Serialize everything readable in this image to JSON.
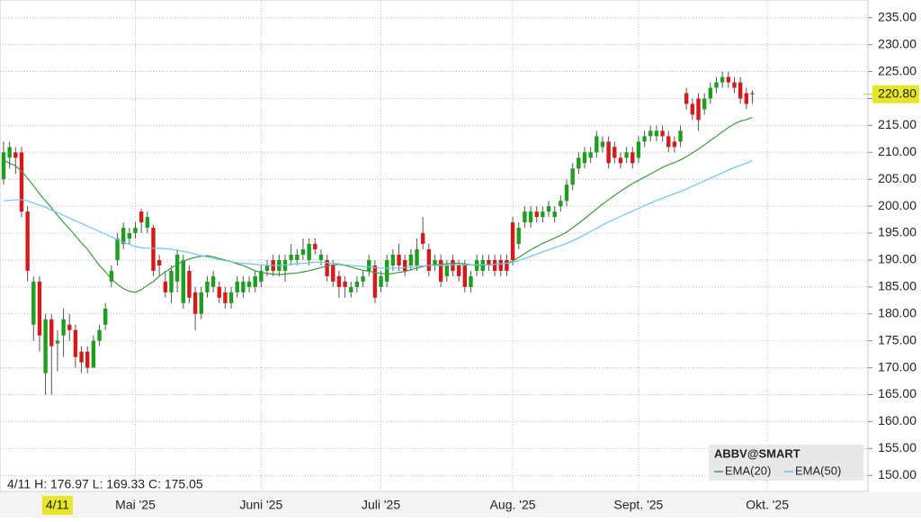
{
  "chart_data": {
    "type": "candlestick",
    "title": "ABBV@SMART",
    "info": "4/11 H: 176.97 L: 169.33 C: 175.05",
    "crosshair": {
      "x": 9,
      "label": "4/11"
    },
    "last_price": {
      "value": 220.8,
      "label": "220.80"
    },
    "up_color": "#1e9e1e",
    "down_color": "#d41a1a",
    "xlim": [
      -0.6,
      144.3
    ],
    "xticks": [
      {
        "value": 22,
        "label": "Mai '25"
      },
      {
        "value": 43,
        "label": "Juni '25"
      },
      {
        "value": 63,
        "label": "Juli '25"
      },
      {
        "value": 85,
        "label": "Aug. '25"
      },
      {
        "value": 106,
        "label": "Sept. '25"
      },
      {
        "value": 127.5,
        "label": "Okt. '25"
      }
    ],
    "ylim": [
      147.2,
      238.3
    ],
    "yticks": [
      {
        "value": 150,
        "label": "150.00"
      },
      {
        "value": 155,
        "label": "155.00"
      },
      {
        "value": 160,
        "label": "160.00"
      },
      {
        "value": 165,
        "label": "165.00"
      },
      {
        "value": 170,
        "label": "170.00"
      },
      {
        "value": 175,
        "label": "175.00"
      },
      {
        "value": 180,
        "label": "180.00"
      },
      {
        "value": 185,
        "label": "185.00"
      },
      {
        "value": 190,
        "label": "190.00"
      },
      {
        "value": 195,
        "label": "195.00"
      },
      {
        "value": 200,
        "label": "200.00"
      },
      {
        "value": 205,
        "label": "205.00"
      },
      {
        "value": 210,
        "label": "210.00"
      },
      {
        "value": 215,
        "label": "215.00"
      },
      {
        "value": 220,
        "label": "220.00"
      },
      {
        "value": 225,
        "label": "225.00"
      },
      {
        "value": 230,
        "label": "230.00"
      },
      {
        "value": 235,
        "label": "235.00"
      }
    ],
    "grid": true,
    "legend": "bottom-right",
    "candles": {
      "open": [
        205,
        209,
        210,
        210,
        199,
        178,
        186,
        169,
        179,
        174.5,
        176,
        178,
        177,
        173,
        173,
        170,
        175,
        178,
        186,
        190,
        193,
        194,
        195,
        199,
        196,
        196,
        190,
        186,
        184,
        186,
        182,
        188,
        184,
        180,
        184,
        185,
        185,
        184,
        182,
        184,
        184,
        185,
        185,
        186,
        188,
        190,
        188,
        188,
        190,
        190,
        191,
        190,
        193,
        190,
        190,
        189,
        187,
        186,
        184,
        185,
        186,
        188,
        189,
        185,
        186,
        189,
        191,
        190,
        189,
        189,
        195,
        192,
        189,
        190,
        187,
        190,
        189,
        189,
        185,
        188,
        188,
        190,
        190,
        190,
        190,
        197,
        193,
        197,
        197,
        199,
        198,
        199,
        198,
        200,
        201,
        204,
        207,
        208,
        209,
        210,
        211,
        212,
        211,
        209,
        209,
        210,
        209,
        212,
        213,
        213,
        214,
        213,
        212,
        212,
        221,
        219,
        220,
        218,
        220,
        222,
        223,
        224,
        223,
        223,
        221,
        221
      ],
      "high": [
        212,
        212,
        211,
        211,
        200,
        187,
        187,
        180,
        180,
        176.97,
        181,
        180,
        178,
        174,
        174,
        176,
        178,
        182,
        189,
        195,
        197,
        196,
        197,
        199.5,
        199,
        196.5,
        191,
        188,
        189,
        192,
        191,
        189,
        185,
        185,
        187,
        188,
        186,
        185,
        185,
        187,
        187,
        187,
        188,
        189,
        190,
        191,
        191,
        191,
        193,
        192,
        194,
        194,
        194,
        192,
        191,
        190,
        188,
        187,
        186,
        187,
        188,
        191,
        190,
        188,
        191,
        192,
        193,
        191,
        192,
        194,
        198,
        193,
        191,
        191,
        190,
        191,
        190,
        190,
        188,
        191,
        191,
        191,
        191,
        191,
        191,
        198,
        197,
        200,
        200,
        200,
        200,
        201,
        200,
        202,
        205,
        208,
        210,
        211,
        211,
        214,
        213,
        213,
        212,
        210,
        211,
        211,
        213,
        214,
        215,
        215,
        215,
        214,
        213,
        215,
        222,
        220,
        221,
        221,
        223,
        224,
        225,
        225,
        224,
        224,
        222,
        221.5
      ],
      "low": [
        204,
        207,
        206,
        198,
        186,
        175,
        173,
        165,
        165,
        169.33,
        172,
        175,
        170,
        169,
        169,
        170,
        174,
        177,
        185,
        189,
        192,
        193,
        194,
        195,
        195,
        187,
        187,
        183,
        182,
        184,
        181,
        182,
        177,
        179,
        183,
        184,
        182,
        181,
        181,
        183,
        183,
        184,
        184,
        185,
        187,
        187,
        187,
        186,
        189,
        189,
        190,
        189,
        191,
        189,
        186,
        185,
        183,
        183,
        183,
        184,
        185,
        187,
        182,
        184,
        185,
        188,
        188,
        187,
        188,
        188,
        192,
        187,
        188,
        185,
        186,
        187,
        186,
        184,
        184,
        187,
        187,
        188,
        187,
        187,
        187,
        189,
        192,
        196,
        196,
        197,
        197,
        198,
        197,
        199,
        200,
        203,
        206,
        207,
        208,
        209,
        210,
        207,
        208,
        207,
        208,
        207,
        208,
        211,
        212,
        212,
        212,
        210,
        210,
        211,
        218,
        216,
        214,
        217,
        219,
        221,
        222,
        222,
        221,
        219,
        218,
        219
      ],
      "close": [
        210,
        211,
        209,
        199,
        188,
        186,
        176,
        179,
        174,
        175.05,
        179,
        177,
        172,
        171,
        170,
        175,
        177,
        181,
        188,
        194,
        196,
        195,
        196,
        197,
        198,
        188,
        189,
        184,
        188,
        191,
        190,
        183,
        180,
        184,
        186,
        187,
        183,
        182,
        184,
        186,
        186,
        186,
        187,
        188,
        189,
        188,
        190,
        190,
        191,
        191,
        192,
        193,
        192,
        191,
        187,
        186,
        185,
        185,
        185,
        186,
        187,
        190,
        183,
        187,
        190,
        191,
        189,
        188,
        191,
        192,
        193,
        188,
        190,
        186,
        189,
        188,
        187,
        185,
        187,
        190,
        190,
        189,
        188,
        188,
        188,
        190,
        196,
        199,
        199,
        198,
        199,
        200,
        199,
        201,
        204,
        207,
        209,
        210,
        210,
        213,
        212,
        208,
        209,
        208,
        210,
        208,
        212,
        213,
        214,
        214,
        213,
        211,
        211,
        214,
        219,
        217,
        216,
        220,
        222,
        223,
        224,
        223,
        222,
        220,
        219,
        220.8
      ]
    },
    "series": [
      {
        "name": "EMA(20)",
        "color": "#3f9a3f",
        "values": [
          208.5,
          208,
          207.5,
          206.5,
          205.2,
          203.8,
          202.3,
          201,
          199.7,
          198.3,
          197,
          195.8,
          194.5,
          193.2,
          192,
          190.5,
          189,
          187.8,
          186.5,
          185.5,
          184.7,
          184.2,
          184,
          184.5,
          185.3,
          186,
          187,
          187.8,
          188.5,
          189.2,
          189.8,
          190.2,
          190.5,
          190.7,
          190.8,
          190.6,
          190.3,
          190,
          189.7,
          189.3,
          189,
          188.5,
          188,
          187.7,
          187.5,
          187.4,
          187.3,
          187.4,
          187.5,
          187.6,
          187.8,
          188,
          188.3,
          188.6,
          188.9,
          189.1,
          189.2,
          189,
          188.7,
          188.4,
          188.1,
          187.9,
          187.7,
          187.5,
          187.4,
          187.5,
          187.7,
          187.9,
          188.2,
          188.5,
          188.8,
          189,
          189.1,
          189.2,
          189.3,
          189.4,
          189.4,
          189.3,
          189.1,
          189,
          189,
          189.1,
          189.2,
          189.3,
          189.4,
          189.8,
          190.5,
          191.2,
          191.9,
          192.5,
          193.1,
          193.6,
          194.1,
          194.6,
          195.2,
          196,
          196.8,
          197.7,
          198.6,
          199.5,
          200.4,
          201.2,
          202,
          202.8,
          203.5,
          204.2,
          204.8,
          205.4,
          206,
          206.6,
          207.2,
          207.7,
          208.1,
          208.6,
          209.2,
          209.9,
          210.6,
          211.4,
          212.2,
          213,
          213.8,
          214.6,
          215.3,
          215.8,
          216.1,
          216.5
        ]
      },
      {
        "name": "EMA(50)",
        "color": "#6cc6ee",
        "values": [
          201,
          201.1,
          201.2,
          201.2,
          201,
          200.6,
          200.2,
          199.8,
          199.3,
          198.8,
          198.3,
          197.8,
          197.3,
          196.8,
          196.3,
          195.8,
          195.3,
          194.8,
          194.3,
          193.8,
          193.3,
          192.9,
          192.5,
          192.3,
          192.2,
          192.2,
          192.2,
          192.1,
          192,
          191.8,
          191.6,
          191.4,
          191.1,
          190.8,
          190.6,
          190.3,
          190.1,
          189.9,
          189.7,
          189.5,
          189.4,
          189.3,
          189.2,
          189.1,
          189,
          189,
          189,
          189.1,
          189.2,
          189.3,
          189.4,
          189.5,
          189.6,
          189.6,
          189.5,
          189.4,
          189.3,
          189.1,
          189,
          188.9,
          188.8,
          188.7,
          188.6,
          188.5,
          188.5,
          188.5,
          188.5,
          188.6,
          188.7,
          188.8,
          188.9,
          189,
          189,
          189,
          189,
          189.1,
          189.1,
          189.1,
          189.1,
          189.1,
          189.1,
          189.1,
          189.2,
          189.3,
          189.4,
          189.6,
          189.9,
          190.3,
          190.7,
          191.1,
          191.5,
          191.9,
          192.3,
          192.7,
          193.1,
          193.6,
          194.1,
          194.7,
          195.3,
          195.9,
          196.5,
          197.1,
          197.6,
          198.1,
          198.6,
          199.1,
          199.6,
          200.1,
          200.6,
          201.1,
          201.5,
          201.9,
          202.3,
          202.7,
          203.2,
          203.7,
          204.2,
          204.7,
          205.2,
          205.7,
          206.2,
          206.7,
          207.2,
          207.6,
          208,
          208.5
        ]
      }
    ]
  }
}
